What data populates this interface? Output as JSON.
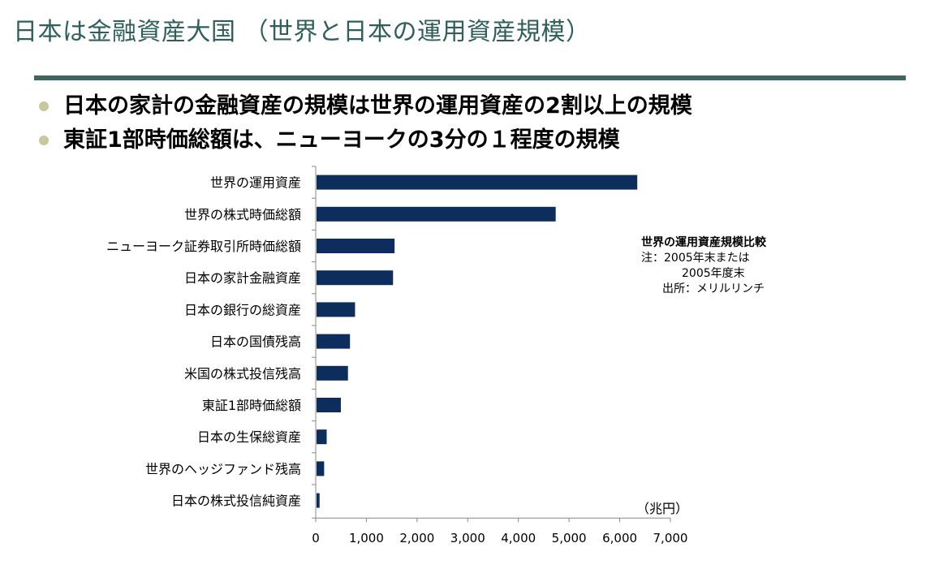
{
  "slide": {
    "title": "日本は金融資産大国 （世界と日本の運用資産規模）",
    "bullets": [
      "日本の家計の金融資産の規模は世界の運用資産の2割以上の規模",
      "東証1部時価総額は、ニューヨークの3分の１程度の規模"
    ]
  },
  "annotation": {
    "title": "世界の運用資産規模比較",
    "lines": [
      "注：2005年末または",
      "2005年度末",
      "出所：メリルリンチ"
    ]
  },
  "chart_data": {
    "type": "bar",
    "orientation": "horizontal",
    "categories": [
      "世界の運用資産",
      "世界の株式時価総額",
      "ニューヨーク証券取引所時価総額",
      "日本の家計金融資産",
      "日本の銀行の総資産",
      "日本の国債残高",
      "米国の株式投信残高",
      "東証1部時価総額",
      "日本の生保総資産",
      "世界のヘッジファンド残高",
      "日本の株式投信純資産"
    ],
    "values": [
      6330,
      4720,
      1540,
      1510,
      760,
      660,
      620,
      480,
      200,
      150,
      60
    ],
    "xlim": [
      0,
      7000
    ],
    "xticks": [
      0,
      1000,
      2000,
      3000,
      4000,
      5000,
      6000,
      7000
    ],
    "xtick_labels": [
      "0",
      "1,000",
      "2,000",
      "3,000",
      "4,000",
      "5,000",
      "6,000",
      "7,000"
    ],
    "unit_label": "（兆円）",
    "bar_color": "#0d2d5c",
    "grid": false
  }
}
